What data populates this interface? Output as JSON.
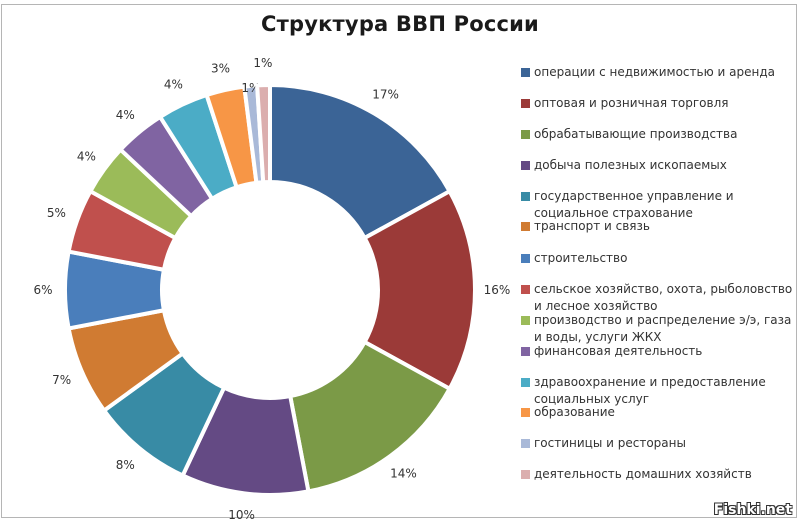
{
  "chart_data": {
    "type": "pie",
    "subtype": "donut",
    "title": "Структура ВВП России",
    "legend_position": "right",
    "categories": [
      "операции с недвижимостью и аренда",
      "оптовая и розничная торговля",
      "обрабатывающие производства",
      "добыча полезных ископаемых",
      "государственное управление и социальное страхование",
      "транспорт и связь",
      "строительство",
      "сельское хозяйство, охота, рыболовство и лесное хозяйство",
      "производство и распределение э/э, газа и воды, услуги ЖКХ",
      "финансовая деятельность",
      "здравоохранение и предоставление социальных услуг",
      "образование",
      "гостиницы и рестораны",
      "деятельность домашних хозяйств"
    ],
    "values": [
      17,
      16,
      14,
      10,
      8,
      7,
      6,
      5,
      4,
      4,
      4,
      3,
      1,
      1
    ],
    "labels": [
      "17%",
      "16%",
      "14%",
      "10%",
      "8%",
      "7%",
      "6%",
      "5%",
      "4%",
      "4%",
      "4%",
      "3%",
      "1%",
      "1%"
    ],
    "colors": [
      "#3b6496",
      "#9b3a38",
      "#7b9a47",
      "#644a84",
      "#388ba5",
      "#d07b32",
      "#4a7ebb",
      "#c0504d",
      "#9bbb59",
      "#8064a2",
      "#4bacc6",
      "#f79646",
      "#a9b9d8",
      "#dbaeae"
    ],
    "unit": "%"
  },
  "legend": {
    "items": [
      {
        "label": "операции с недвижимостью и аренда",
        "color": "#3b6496"
      },
      {
        "label": "оптовая и розничная торговля",
        "color": "#9b3a38"
      },
      {
        "label": "обрабатывающие производства",
        "color": "#7b9a47"
      },
      {
        "label": "добыча полезных ископаемых",
        "color": "#644a84"
      },
      {
        "label": "государственное управление и социальное страхование",
        "color": "#388ba5"
      },
      {
        "label": "транспорт и связь",
        "color": "#d07b32"
      },
      {
        "label": "строительство",
        "color": "#4a7ebb"
      },
      {
        "label": "сельское хозяйство, охота, рыболовство и лесное хозяйство",
        "color": "#c0504d"
      },
      {
        "label": "производство и распределение э/э, газа и воды, услуги ЖКХ",
        "color": "#9bbb59"
      },
      {
        "label": "финансовая деятельность",
        "color": "#8064a2"
      },
      {
        "label": "здравоохранение и предоставление социальных услуг",
        "color": "#4bacc6"
      },
      {
        "label": "образование",
        "color": "#f79646"
      },
      {
        "label": "гостиницы и рестораны",
        "color": "#a9b9d8"
      },
      {
        "label": "деятельность домашних хозяйств",
        "color": "#dbaeae"
      }
    ]
  },
  "watermark": "Fishki.net"
}
